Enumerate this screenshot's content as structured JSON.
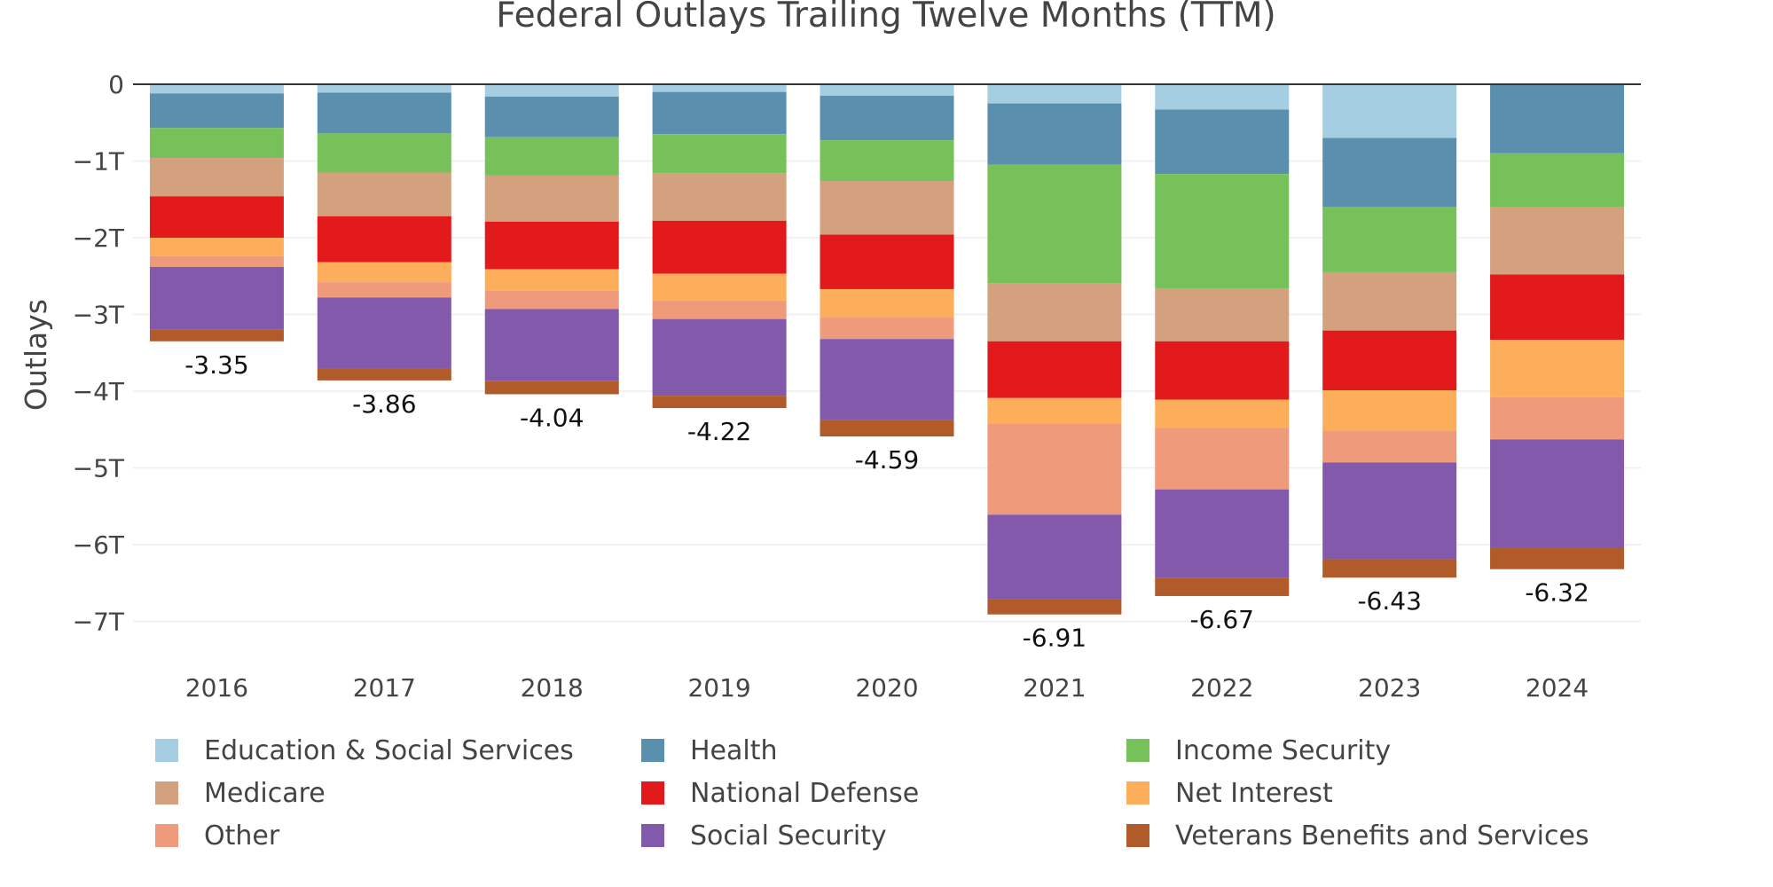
{
  "chart_data": {
    "type": "bar",
    "stacked": true,
    "title": "Federal Outlays Trailing Twelve Months (TTM)",
    "xlabel": "",
    "ylabel": "Outlays",
    "ylim": [
      -7.35,
      0
    ],
    "yticks": [
      0,
      -1,
      -2,
      -3,
      -4,
      -5,
      -6,
      -7
    ],
    "ytick_labels": [
      "0",
      "−1T",
      "−2T",
      "−3T",
      "−4T",
      "−5T",
      "−6T",
      "−7T"
    ],
    "grid": true,
    "legend_position": "bottom",
    "categories": [
      "2016",
      "2017",
      "2018",
      "2019",
      "2020",
      "2021",
      "2022",
      "2023",
      "2024"
    ],
    "totals": [
      -3.35,
      -3.86,
      -4.04,
      -4.22,
      -4.59,
      -6.91,
      -6.67,
      -6.43,
      -6.32
    ],
    "total_labels": [
      "-3.35",
      "-3.86",
      "-4.04",
      "-4.22",
      "-4.59",
      "-6.91",
      "-6.67",
      "-6.43",
      "-6.32"
    ],
    "series": [
      {
        "name": "Education & Social Services",
        "color": "#a6cee3",
        "values": [
          -0.12,
          -0.11,
          -0.16,
          -0.1,
          -0.15,
          -0.25,
          -0.33,
          -0.7,
          0.0
        ]
      },
      {
        "name": "Health",
        "color": "#5a8fae",
        "values": [
          -0.45,
          -0.53,
          -0.53,
          -0.55,
          -0.58,
          -0.8,
          -0.84,
          -0.9,
          -0.9
        ]
      },
      {
        "name": "Income Security",
        "color": "#77c15a",
        "values": [
          -0.39,
          -0.51,
          -0.5,
          -0.51,
          -0.53,
          -1.54,
          -1.49,
          -0.85,
          -0.7
        ]
      },
      {
        "name": "Medicare",
        "color": "#d4a17e",
        "values": [
          -0.5,
          -0.57,
          -0.6,
          -0.62,
          -0.7,
          -0.76,
          -0.69,
          -0.76,
          -0.88
        ]
      },
      {
        "name": "National Defense",
        "color": "#e31a1c",
        "values": [
          -0.54,
          -0.6,
          -0.62,
          -0.69,
          -0.71,
          -0.74,
          -0.76,
          -0.78,
          -0.85
        ]
      },
      {
        "name": "Net Interest",
        "color": "#fdae5b",
        "values": [
          -0.24,
          -0.26,
          -0.28,
          -0.35,
          -0.37,
          -0.33,
          -0.37,
          -0.53,
          -0.75
        ]
      },
      {
        "name": "Other",
        "color": "#ef9a7a",
        "values": [
          -0.14,
          -0.2,
          -0.24,
          -0.24,
          -0.28,
          -1.19,
          -0.8,
          -0.41,
          -0.55
        ]
      },
      {
        "name": "Social Security",
        "color": "#8259ab",
        "values": [
          -0.82,
          -0.92,
          -0.94,
          -1.0,
          -1.06,
          -1.1,
          -1.15,
          -1.26,
          -1.41
        ]
      },
      {
        "name": "Veterans Benefits and Services",
        "color": "#b15a2a",
        "values": [
          -0.15,
          -0.16,
          -0.17,
          -0.16,
          -0.21,
          -0.2,
          -0.24,
          -0.24,
          -0.28
        ]
      }
    ]
  }
}
